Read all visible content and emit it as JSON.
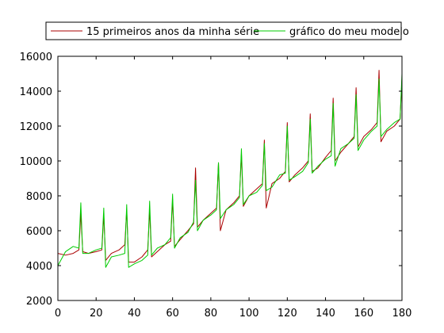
{
  "chart_data": {
    "type": "line",
    "title": "",
    "xlabel": "",
    "ylabel": "",
    "xlim": [
      0,
      180
    ],
    "ylim": [
      2000,
      16000
    ],
    "x_ticks": [
      0,
      20,
      40,
      60,
      80,
      100,
      120,
      140,
      160,
      180
    ],
    "y_ticks": [
      2000,
      4000,
      6000,
      8000,
      10000,
      12000,
      14000,
      16000
    ],
    "x_tick_labels": [
      "0",
      "20",
      "40",
      "60",
      "80",
      "100",
      "120",
      "140",
      "160",
      "180"
    ],
    "y_tick_labels": [
      "2000",
      "4000",
      "6000",
      "8000",
      "10000",
      "12000",
      "14000",
      "16000"
    ],
    "grid": false,
    "legend_position": "top",
    "x": [
      0,
      4,
      8,
      11,
      12,
      13,
      16,
      20,
      23,
      24,
      25,
      28,
      32,
      35,
      36,
      37,
      40,
      44,
      47,
      48,
      49,
      52,
      56,
      59,
      60,
      61,
      64,
      68,
      71,
      72,
      73,
      76,
      80,
      83,
      84,
      85,
      88,
      92,
      95,
      96,
      97,
      100,
      104,
      107,
      108,
      109,
      112,
      116,
      119,
      120,
      121,
      124,
      128,
      131,
      132,
      133,
      136,
      140,
      143,
      144,
      145,
      148,
      152,
      155,
      156,
      157,
      160,
      164,
      167,
      168,
      169,
      172,
      176,
      179,
      180
    ],
    "series": [
      {
        "name": "15 primeiros anos da minha série",
        "color": "#aa0000",
        "values": [
          4700,
          4600,
          4700,
          4900,
          7000,
          4800,
          4700,
          4800,
          4900,
          6900,
          4300,
          4700,
          4900,
          5200,
          7200,
          4200,
          4200,
          4500,
          4900,
          7200,
          4500,
          4800,
          5200,
          5400,
          7800,
          5100,
          5500,
          6000,
          6400,
          9600,
          6200,
          6600,
          7000,
          7300,
          9900,
          6000,
          7200,
          7600,
          8000,
          10400,
          7400,
          8000,
          8400,
          8700,
          11200,
          7300,
          8700,
          9000,
          9400,
          12200,
          8800,
          9200,
          9600,
          10000,
          12700,
          9400,
          9600,
          10200,
          10600,
          13600,
          10000,
          10500,
          11000,
          11400,
          14200,
          10800,
          11400,
          11800,
          12200,
          15200,
          11100,
          11700,
          12000,
          12400,
          14700
        ]
      },
      {
        "name": "gráfico do meu modelo",
        "color": "#00cc00",
        "values": [
          4000,
          4800,
          5100,
          5000,
          7600,
          4700,
          4700,
          4900,
          5000,
          7300,
          3900,
          4500,
          4600,
          4700,
          7500,
          3900,
          4100,
          4300,
          4600,
          7700,
          4600,
          5000,
          5200,
          5600,
          8100,
          5000,
          5600,
          5900,
          6500,
          8900,
          6000,
          6600,
          6900,
          7200,
          9900,
          6700,
          7200,
          7500,
          7900,
          10700,
          7500,
          8000,
          8200,
          8600,
          11000,
          8300,
          8500,
          9200,
          9300,
          12000,
          8900,
          9100,
          9400,
          9900,
          12400,
          9300,
          9700,
          10100,
          10300,
          13300,
          9700,
          10700,
          11000,
          11300,
          13800,
          10600,
          11200,
          11700,
          12000,
          14700,
          11400,
          11800,
          12200,
          12400,
          15000
        ]
      }
    ]
  }
}
